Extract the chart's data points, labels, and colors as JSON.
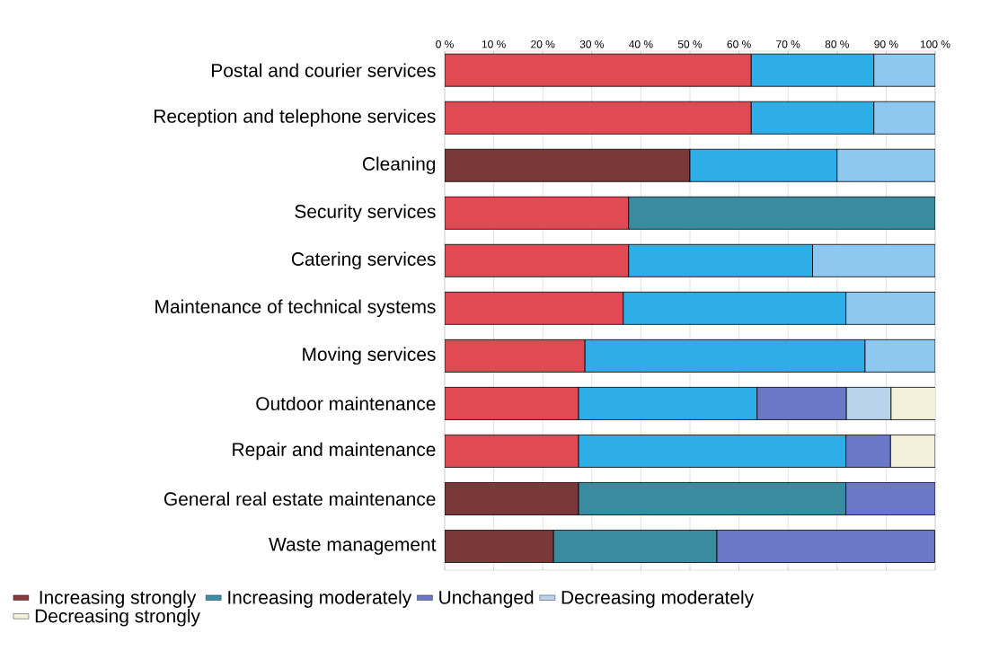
{
  "chart_data": {
    "type": "bar",
    "orientation": "horizontal",
    "stacked": true,
    "grid": "x",
    "legend": "bottom",
    "categories": [
      "Postal and courier services",
      "Reception and telephone services",
      "Cleaning",
      "Security services",
      "Catering services",
      "Maintenance of technical systems",
      "Moving services",
      "Outdoor maintenance",
      "Repair and maintenance",
      "General real estate maintenance",
      "Waste management"
    ],
    "xlim": [
      0,
      100
    ],
    "xticks": [
      {
        "value": 0,
        "label": "0 %"
      },
      {
        "value": 10,
        "label": "10 %"
      },
      {
        "value": 20,
        "label": "20 %"
      },
      {
        "value": 30,
        "label": "30 %"
      },
      {
        "value": 40,
        "label": "40 %"
      },
      {
        "value": 50,
        "label": "50 %"
      },
      {
        "value": 60,
        "label": "60 %"
      },
      {
        "value": 70,
        "label": "70 %"
      },
      {
        "value": 80,
        "label": "80 %"
      },
      {
        "value": 90,
        "label": "90 %"
      },
      {
        "value": 100,
        "label": "100 %"
      }
    ],
    "series": [
      {
        "name": "Increasing strongly",
        "color": "#8a3a3f",
        "values": [
          62.5,
          62.5,
          50,
          37.5,
          37.5,
          36.4,
          28.6,
          27.3,
          27.3,
          27.3,
          22.2
        ],
        "colors": [
          "#e04a52",
          "#e04a52",
          "#7a3838",
          "#e04a52",
          "#e04a52",
          "#e04a52",
          "#e04a52",
          "#e04a52",
          "#e04a52",
          "#7a3838",
          "#7a3838"
        ]
      },
      {
        "name": "Increasing moderately",
        "color": "#3d8fa6",
        "values": [
          25,
          25,
          30,
          62.5,
          37.5,
          45.4,
          57.1,
          36.4,
          54.5,
          54.5,
          33.3
        ],
        "colors": [
          "#2eaee6",
          "#2eaee6",
          "#2eaee6",
          "#3a8aa0",
          "#2eaee6",
          "#2eaee6",
          "#2eaee6",
          "#2eaee6",
          "#2eaee6",
          "#3a8aa0",
          "#3a8aa0"
        ]
      },
      {
        "name": "Unchanged",
        "color": "#6b78c8",
        "values": [
          0,
          0,
          0,
          0,
          0,
          0,
          0,
          18.2,
          9.1,
          18.2,
          44.4
        ]
      },
      {
        "name": "Decreasing moderately",
        "color": "#b9d3ec",
        "values": [
          12.5,
          12.5,
          20,
          0,
          25,
          18.2,
          14.3,
          9.1,
          0,
          0,
          0
        ],
        "colors": [
          "#8ec8f0",
          "#8ec8f0",
          "#8ec8f0",
          "#8ec8f0",
          "#8ec8f0",
          "#8ec8f0",
          "#8ec8f0",
          "#b9d3ec",
          "#8ec8f0",
          "#8ec8f0",
          "#8ec8f0"
        ]
      },
      {
        "name": "Decreasing strongly",
        "color": "#f3f0dc",
        "values": [
          0,
          0,
          0,
          0,
          0,
          0,
          0,
          9.1,
          9.1,
          0,
          0
        ]
      }
    ]
  }
}
